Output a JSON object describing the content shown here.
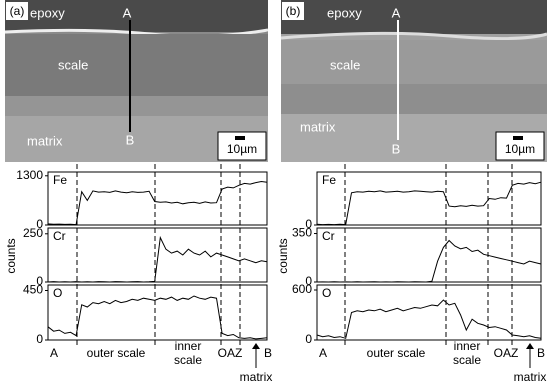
{
  "micrographs": [
    {
      "label": "(a)",
      "epoxy": "epoxy",
      "scale": "scale",
      "matrix": "matrix",
      "start": "A",
      "end": "B",
      "scale_bar": "10µm"
    },
    {
      "label": "(b)",
      "epoxy": "epoxy",
      "scale": "scale",
      "matrix": "matrix",
      "start": "A",
      "end": "B",
      "scale_bar": "10µm"
    }
  ],
  "scans": [
    {
      "y_label": "counts",
      "start": "A",
      "outer": "outer scale",
      "inner": [
        "inner",
        "scale"
      ],
      "oaz": "OAZ",
      "end": "B",
      "matrix": "matrix"
    },
    {
      "y_label": "counts",
      "start": "A",
      "outer": "outer scale",
      "inner": [
        "inner",
        "scale"
      ],
      "oaz": "OAZ",
      "end": "B",
      "matrix": "matrix"
    }
  ],
  "chart_data": [
    {
      "type": "line",
      "title": "Fe",
      "color": "#000000",
      "ylim": [
        0,
        1400
      ],
      "yticks": [
        0,
        1300
      ],
      "values": [
        30,
        20,
        25,
        15,
        20,
        10,
        880,
        650,
        900,
        870,
        880,
        860,
        900,
        870,
        850,
        880,
        860,
        870,
        890,
        620,
        600,
        610,
        580,
        600,
        560,
        590,
        600,
        570,
        610,
        580,
        590,
        950,
        1000,
        980,
        1050,
        1100,
        1080,
        1120,
        1150,
        1130
      ]
    },
    {
      "type": "line",
      "title": "Cr",
      "color": "#000000",
      "ylim": [
        0,
        280
      ],
      "yticks": [
        0,
        250
      ],
      "values": [
        0,
        2,
        0,
        1,
        0,
        2,
        0,
        1,
        0,
        2,
        1,
        0,
        2,
        1,
        0,
        1,
        2,
        0,
        1,
        3,
        230,
        170,
        150,
        160,
        140,
        170,
        150,
        140,
        160,
        130,
        150,
        140,
        130,
        120,
        110,
        120,
        110,
        100,
        110,
        105
      ]
    },
    {
      "type": "line",
      "title": "O",
      "color": "#000000",
      "ylim": [
        0,
        500
      ],
      "yticks": [
        0,
        450
      ],
      "values": [
        120,
        80,
        90,
        60,
        70,
        40,
        320,
        300,
        340,
        330,
        350,
        330,
        360,
        340,
        350,
        370,
        360,
        380,
        370,
        360,
        380,
        370,
        390,
        360,
        380,
        370,
        400,
        380,
        370,
        390,
        380,
        60,
        40,
        50,
        20,
        15,
        20,
        10,
        15,
        20
      ]
    },
    {
      "type": "line",
      "title": "Fe",
      "color": "#000000",
      "ylim": [
        0,
        1400
      ],
      "yticks": [
        0
      ],
      "values": [
        20,
        10,
        15,
        10,
        20,
        10,
        850,
        880,
        870,
        890,
        880,
        900,
        870,
        880,
        890,
        870,
        880,
        900,
        890,
        880,
        870,
        890,
        880,
        500,
        480,
        510,
        490,
        520,
        500,
        510,
        700,
        680,
        720,
        710,
        1050,
        1100,
        1080,
        1120,
        1090,
        1130
      ]
    },
    {
      "type": "line",
      "title": "Cr",
      "color": "#000000",
      "ylim": [
        0,
        390
      ],
      "yticks": [
        0,
        350
      ],
      "values": [
        0,
        1,
        0,
        2,
        0,
        1,
        0,
        2,
        0,
        1,
        2,
        0,
        1,
        0,
        2,
        1,
        0,
        2,
        1,
        0,
        5,
        150,
        250,
        300,
        260,
        240,
        250,
        220,
        230,
        200,
        190,
        180,
        170,
        160,
        150,
        140,
        130,
        150,
        140,
        130
      ]
    },
    {
      "type": "line",
      "title": "O",
      "color": "#000000",
      "ylim": [
        0,
        660
      ],
      "yticks": [
        0,
        600
      ],
      "values": [
        60,
        40,
        50,
        30,
        40,
        20,
        330,
        350,
        340,
        360,
        350,
        370,
        340,
        360,
        380,
        350,
        370,
        390,
        380,
        400,
        420,
        410,
        480,
        420,
        440,
        300,
        120,
        250,
        200,
        180,
        150,
        160,
        140,
        120,
        60,
        50,
        40,
        50,
        30,
        20
      ]
    }
  ]
}
